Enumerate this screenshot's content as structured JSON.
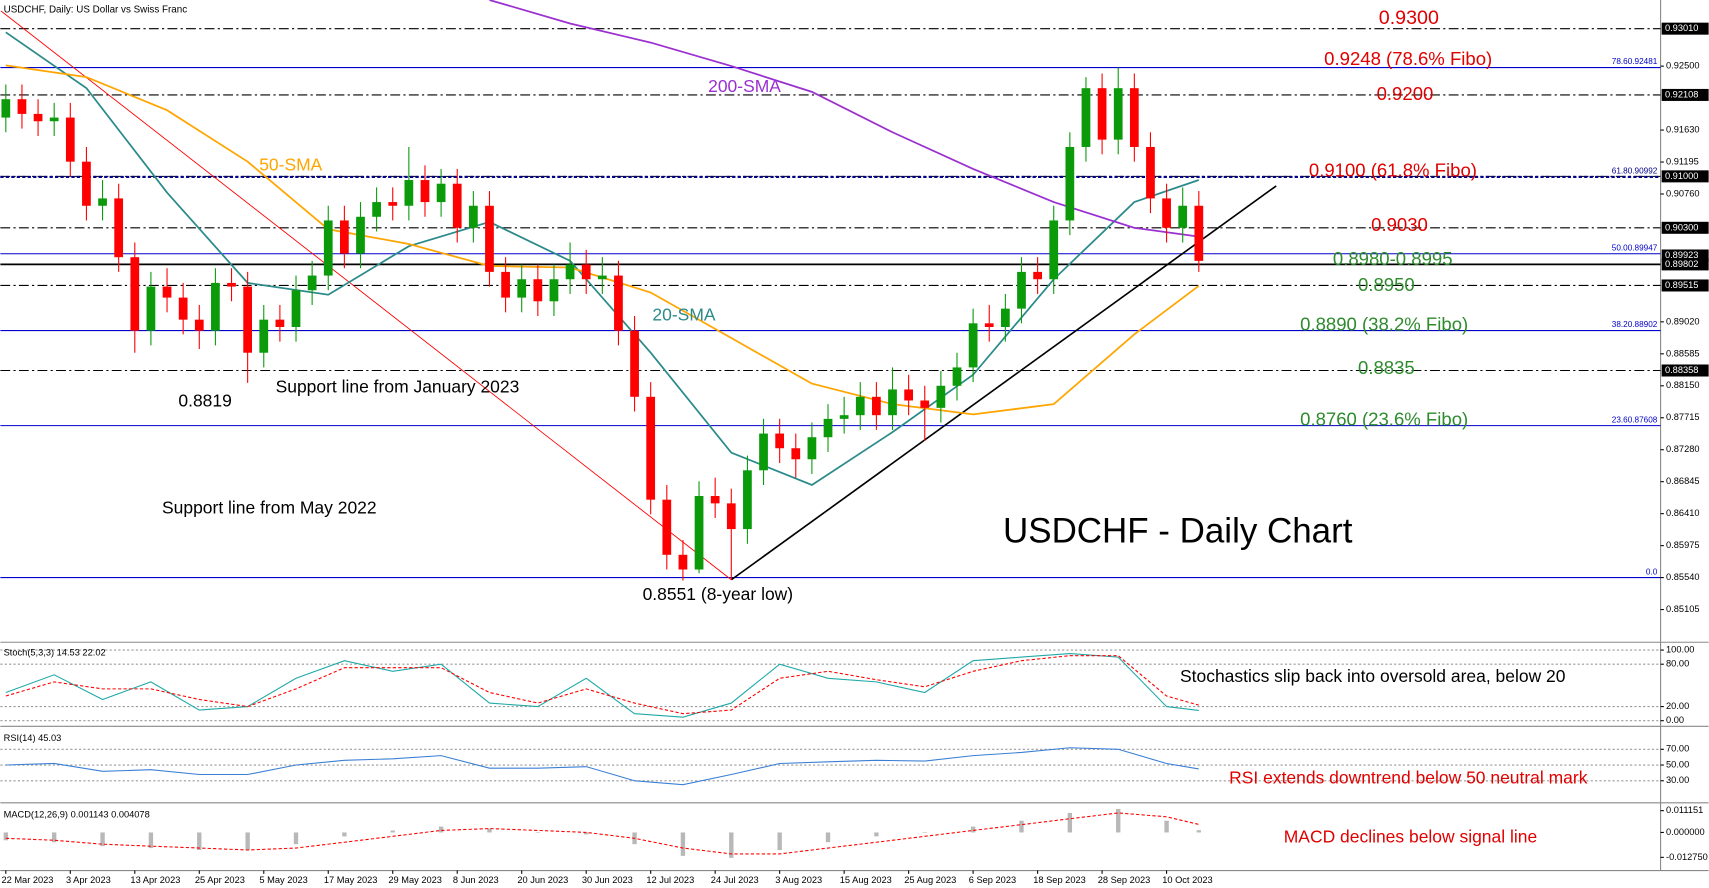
{
  "chart_data": [
    {
      "type": "candlestick",
      "title": "USDCHF, Daily:  US Dollar vs Swiss Franc",
      "categories": [
        "22 Mar 2023",
        null,
        null,
        null,
        "3 Apr 2023",
        null,
        null,
        null,
        "13 Apr 2023",
        null,
        null,
        null,
        "25 Apr 2023",
        null,
        null,
        null,
        "5 May 2023",
        null,
        null,
        null,
        "17 May 2023",
        null,
        null,
        null,
        "29 May 2023",
        null,
        null,
        null,
        "8 Jun 2023",
        null,
        null,
        null,
        "20 Jun 2023",
        null,
        null,
        null,
        "30 Jun 2023",
        null,
        null,
        null,
        "12 Jul 2023",
        null,
        null,
        null,
        "24 Jul 2023",
        null,
        null,
        null,
        "3 Aug 2023",
        null,
        null,
        null,
        "15 Aug 2023",
        null,
        null,
        null,
        "25 Aug 2023",
        null,
        null,
        null,
        "6 Sep 2023",
        null,
        null,
        null,
        "18 Sep 2023",
        null,
        null,
        null,
        "28 Sep 2023",
        null,
        null,
        null,
        "10 Oct 2023",
        null,
        null
      ],
      "open": [
        0.918,
        0.9205,
        0.9185,
        0.9175,
        0.918,
        0.912,
        0.906,
        0.907,
        0.899,
        0.889,
        0.895,
        0.8935,
        0.8905,
        0.889,
        0.8955,
        0.895,
        0.886,
        0.8905,
        0.8895,
        0.8945,
        0.8965,
        0.904,
        0.8995,
        0.9045,
        0.9065,
        0.906,
        0.9095,
        0.9065,
        0.909,
        0.903,
        0.906,
        0.897,
        0.8935,
        0.896,
        0.893,
        0.896,
        0.898,
        0.896,
        0.8965,
        0.889,
        0.88,
        0.866,
        0.8585,
        0.8565,
        0.8665,
        0.8655,
        0.862,
        0.87,
        0.875,
        0.873,
        0.8715,
        0.8745,
        0.877,
        0.8775,
        0.88,
        0.8775,
        0.881,
        0.8795,
        0.8785,
        0.8815,
        0.884,
        0.89,
        0.8895,
        0.892,
        0.897,
        0.896,
        0.904,
        0.914,
        0.922,
        0.915,
        0.922,
        0.914,
        0.907,
        0.903,
        0.906
      ],
      "high": [
        0.9225,
        0.9225,
        0.9205,
        0.92,
        0.92,
        0.914,
        0.9095,
        0.909,
        0.901,
        0.897,
        0.8975,
        0.8955,
        0.8925,
        0.8975,
        0.8975,
        0.897,
        0.8925,
        0.8925,
        0.8965,
        0.8985,
        0.906,
        0.906,
        0.9065,
        0.9085,
        0.9085,
        0.914,
        0.9115,
        0.911,
        0.911,
        0.908,
        0.908,
        0.899,
        0.898,
        0.898,
        0.898,
        0.901,
        0.9,
        0.899,
        0.8985,
        0.891,
        0.882,
        0.868,
        0.8605,
        0.8685,
        0.869,
        0.8675,
        0.872,
        0.877,
        0.877,
        0.875,
        0.8765,
        0.879,
        0.88,
        0.882,
        0.882,
        0.884,
        0.883,
        0.8815,
        0.8835,
        0.886,
        0.892,
        0.8925,
        0.894,
        0.899,
        0.899,
        0.906,
        0.916,
        0.9235,
        0.924,
        0.9248,
        0.924,
        0.916,
        0.909,
        0.9085,
        0.908
      ],
      "low": [
        0.916,
        0.9165,
        0.9155,
        0.9155,
        0.91,
        0.904,
        0.904,
        0.897,
        0.886,
        0.887,
        0.8915,
        0.8885,
        0.8865,
        0.887,
        0.893,
        0.8819,
        0.884,
        0.8875,
        0.8875,
        0.8925,
        0.8945,
        0.8975,
        0.8975,
        0.9025,
        0.904,
        0.904,
        0.9045,
        0.9045,
        0.901,
        0.901,
        0.895,
        0.8915,
        0.8915,
        0.891,
        0.891,
        0.894,
        0.894,
        0.894,
        0.887,
        0.878,
        0.864,
        0.8565,
        0.855,
        0.856,
        0.8635,
        0.8551,
        0.86,
        0.868,
        0.871,
        0.869,
        0.8695,
        0.8725,
        0.875,
        0.8755,
        0.8755,
        0.8755,
        0.8775,
        0.874,
        0.8765,
        0.8795,
        0.882,
        0.8875,
        0.8875,
        0.89,
        0.894,
        0.894,
        0.902,
        0.912,
        0.913,
        0.913,
        0.912,
        0.905,
        0.901,
        0.901,
        0.897
      ],
      "close": [
        0.9205,
        0.9185,
        0.9175,
        0.918,
        0.912,
        0.906,
        0.907,
        0.899,
        0.889,
        0.895,
        0.8935,
        0.8905,
        0.889,
        0.8955,
        0.895,
        0.886,
        0.8905,
        0.8895,
        0.8945,
        0.8965,
        0.904,
        0.8995,
        0.9045,
        0.9065,
        0.906,
        0.9095,
        0.9065,
        0.909,
        0.903,
        0.906,
        0.897,
        0.8935,
        0.896,
        0.893,
        0.896,
        0.898,
        0.896,
        0.8965,
        0.889,
        0.88,
        0.866,
        0.8585,
        0.8565,
        0.8665,
        0.8655,
        0.862,
        0.87,
        0.875,
        0.873,
        0.8715,
        0.8745,
        0.877,
        0.8775,
        0.88,
        0.8775,
        0.881,
        0.8795,
        0.8785,
        0.8815,
        0.884,
        0.89,
        0.8895,
        0.892,
        0.897,
        0.896,
        0.904,
        0.914,
        0.922,
        0.915,
        0.922,
        0.914,
        0.907,
        0.903,
        0.906,
        0.8985
      ],
      "up_color": "#0a9a0a",
      "down_color": "#ff0000",
      "ylim": [
        0.8466,
        0.934
      ],
      "yticks": [
        {
          "value": 0.925,
          "label": "0.92500"
        },
        {
          "value": 0.9163,
          "label": "0.91630"
        },
        0.91195,
        {
          "value": 0.9076,
          "label": "0.90760"
        },
        {
          "value": 0.8902,
          "label": "0.89020"
        },
        0.88585,
        {
          "value": 0.8815,
          "label": "0.88150"
        },
        0.87715,
        {
          "value": 0.8728,
          "label": "0.87280"
        },
        0.86845,
        {
          "value": 0.8641,
          "label": "0.86410"
        },
        0.85975,
        {
          "value": 0.8554,
          "label": "0.85540"
        },
        0.85105
      ],
      "levels": [
        {
          "value": 0.9301,
          "label": "0.93010",
          "style": "dashdot",
          "color": "#000000",
          "boxed": true
        },
        {
          "value": 0.92481,
          "label": "78.60.92481",
          "style": "solid",
          "color": "#0000cc",
          "boxed": false
        },
        {
          "value": 0.92108,
          "label": "0.92108",
          "style": "dashdot",
          "color": "#000000",
          "boxed": true
        },
        {
          "value": 0.91,
          "label": "0.91000",
          "style": "dashdot",
          "color": "#000000",
          "boxed": true
        },
        {
          "value": 0.90992,
          "label": "61.80.90992",
          "style": "dotted",
          "color": "#00008b",
          "boxed": false
        },
        {
          "value": 0.903,
          "label": "0.90300",
          "style": "dashdot",
          "color": "#000000",
          "boxed": true
        },
        {
          "value": 0.89947,
          "label": "50.00.89947",
          "style": "solid",
          "color": "#0000cc",
          "boxed": false
        },
        {
          "value": 0.89923,
          "label": "0.89923",
          "style": "none",
          "color": "#000000",
          "boxed": true
        },
        {
          "value": 0.89802,
          "label": "0.89802",
          "style": "bold",
          "color": "#000000",
          "boxed": true
        },
        {
          "value": 0.89515,
          "label": "0.89515",
          "style": "dashdot",
          "color": "#000000",
          "boxed": true
        },
        {
          "value": 0.88902,
          "label": "38.20.88902",
          "style": "solid",
          "color": "#0000cc",
          "boxed": false
        },
        {
          "value": 0.88358,
          "label": "0.88358",
          "style": "dashdot",
          "color": "#000000",
          "boxed": true
        },
        {
          "value": 0.87608,
          "label": "23.60.87608",
          "style": "solid",
          "color": "#0000cc",
          "boxed": false
        },
        {
          "value": 0.8554,
          "label": "0.0",
          "style": "solid",
          "color": "#0000cc",
          "boxed": false
        }
      ],
      "series": [
        {
          "color": "#2b8a8a",
          "x": [
            0,
            5,
            10,
            15,
            20,
            25,
            30,
            35,
            40,
            45,
            50,
            55,
            60,
            65,
            70,
            74
          ],
          "values": [
            0.9296,
            0.922,
            0.9078,
            0.8955,
            0.8939,
            0.9005,
            0.9038,
            0.8985,
            0.886,
            0.8724,
            0.868,
            0.8752,
            0.883,
            0.896,
            0.9065,
            0.9095
          ]
        },
        {
          "color": "#ffa500",
          "x": [
            0,
            5,
            10,
            15,
            20,
            25,
            30,
            35,
            40,
            45,
            50,
            55,
            60,
            65,
            70,
            74
          ],
          "values": [
            0.9251,
            0.9235,
            0.919,
            0.912,
            0.9028,
            0.9008,
            0.8978,
            0.8976,
            0.8942,
            0.888,
            0.8818,
            0.879,
            0.8776,
            0.879,
            0.8885,
            0.8951
          ]
        },
        {
          "color": "#9b30d0",
          "x": [
            30,
            35,
            40,
            45,
            50,
            55,
            60,
            65,
            70,
            74
          ],
          "values": [
            0.934,
            0.9308,
            0.9282,
            0.925,
            0.9215,
            0.916,
            0.911,
            0.9065,
            0.903,
            0.9018
          ]
        }
      ],
      "lines": [
        {
          "color": "#ff0000",
          "x": [
            -0.3,
            45
          ],
          "values": [
            0.9325,
            0.8551
          ]
        },
        {
          "color": "#000000",
          "x": [
            45,
            78.8
          ],
          "values": [
            0.8551,
            0.9087
          ]
        }
      ],
      "annotations": [
        {
          "text": "0.9300",
          "color": "#e00000"
        },
        {
          "text": "0.9248 (78.6% Fibo)",
          "color": "#e00000"
        },
        {
          "text": "0.9200",
          "color": "#e00000"
        },
        {
          "text": "0.9100 (61.8% Fibo)",
          "color": "#e00000"
        },
        {
          "text": "0.9030",
          "color": "#e00000"
        },
        {
          "text": "0.8980-0.8995",
          "color": "#2e8b2e"
        },
        {
          "text": "0.8950",
          "color": "#2e8b2e"
        },
        {
          "text": "0.8890 (38.2% Fibo)",
          "color": "#2e8b2e"
        },
        {
          "text": "0.8835",
          "color": "#2e8b2e"
        },
        {
          "text": "0.8760 (23.6% Fibo)",
          "color": "#2e8b2e"
        },
        {
          "text": "200-SMA",
          "color": "#9b30d0"
        },
        {
          "text": "50-SMA",
          "color": "#ffa500"
        },
        {
          "text": "20-SMA",
          "color": "#2b8a8a"
        },
        {
          "text": "0.8819",
          "color": "#000000"
        },
        {
          "text": "Support line from January 2023",
          "color": "#000000"
        },
        {
          "text": "Support line from May 2022",
          "color": "#000000"
        },
        {
          "text": "0.8551 (8-year low)",
          "color": "#000000"
        },
        {
          "text": "USDCHF - Daily Chart",
          "color": "#000000"
        }
      ]
    },
    {
      "type": "line",
      "title": "Stoch(5,3,3) 14.53 22.02",
      "annotation": {
        "text": "Stochastics slip back into oversold area, below 20",
        "color": "#000000"
      },
      "x": [
        0,
        3,
        6,
        9,
        12,
        15,
        18,
        21,
        24,
        27,
        30,
        33,
        36,
        39,
        42,
        45,
        48,
        51,
        54,
        57,
        60,
        63,
        66,
        69,
        72,
        74
      ],
      "series": [
        {
          "color": "#20a8a8",
          "dash": false,
          "values": [
            40,
            65,
            30,
            55,
            15,
            20,
            60,
            85,
            70,
            80,
            25,
            20,
            60,
            10,
            5,
            25,
            80,
            60,
            55,
            40,
            85,
            90,
            95,
            90,
            20,
            14.53
          ]
        },
        {
          "color": "#ff0000",
          "dash": true,
          "values": [
            35,
            55,
            45,
            45,
            30,
            20,
            45,
            75,
            75,
            75,
            40,
            25,
            45,
            25,
            10,
            15,
            60,
            70,
            58,
            48,
            70,
            85,
            92,
            92,
            35,
            22.02
          ]
        }
      ],
      "ylim": [
        -8,
        108
      ],
      "yticks": [
        {
          "value": 100,
          "label": "100.00"
        },
        {
          "value": 80,
          "label": "80.00"
        },
        {
          "value": 20,
          "label": "20.00"
        },
        {
          "value": 0,
          "label": "0.00"
        }
      ],
      "grid": true
    },
    {
      "type": "line",
      "title": "RSI(14) 45.03",
      "annotation": {
        "text": "RSI extends downtrend below 50 neutral mark",
        "color": "#e00000"
      },
      "x": [
        0,
        3,
        6,
        9,
        12,
        15,
        18,
        21,
        24,
        27,
        30,
        33,
        36,
        39,
        42,
        45,
        48,
        51,
        54,
        57,
        60,
        63,
        66,
        69,
        72,
        74
      ],
      "series": [
        {
          "color": "#3a7fd5",
          "dash": false,
          "values": [
            50,
            52,
            42,
            44,
            38,
            38,
            50,
            56,
            58,
            62,
            46,
            46,
            48,
            30,
            25,
            38,
            52,
            54,
            56,
            55,
            62,
            66,
            72,
            70,
            52,
            45.03
          ]
        }
      ],
      "ylim": [
        2,
        95
      ],
      "yticks": [
        {
          "value": 70,
          "label": "70.00"
        },
        {
          "value": 50,
          "label": "50.00"
        },
        {
          "value": 30,
          "label": "30.00"
        }
      ],
      "grid": true
    },
    {
      "type": "bar",
      "title": "MACD(12,26,9) 0.001143 0.004078",
      "annotation": {
        "text": "MACD declines below signal line",
        "color": "#e00000"
      },
      "x": [
        0,
        3,
        6,
        9,
        12,
        15,
        18,
        21,
        24,
        27,
        30,
        33,
        36,
        39,
        42,
        45,
        48,
        51,
        54,
        57,
        60,
        63,
        66,
        69,
        72,
        74
      ],
      "series": [
        {
          "type": "bar",
          "color": "#b8b8b8",
          "values": [
            -0.004,
            -0.005,
            -0.007,
            -0.008,
            -0.009,
            -0.009,
            -0.006,
            -0.002,
            0.001,
            0.003,
            0.002,
            0.0,
            -0.001,
            -0.006,
            -0.012,
            -0.013,
            -0.009,
            -0.005,
            -0.002,
            0.0,
            0.003,
            0.006,
            0.01,
            0.012,
            0.006,
            0.001143
          ]
        },
        {
          "type": "line",
          "color": "#ff0000",
          "dash": true,
          "values": [
            -0.003,
            -0.004,
            -0.006,
            -0.007,
            -0.008,
            -0.009,
            -0.008,
            -0.005,
            -0.002,
            0.001,
            0.002,
            0.001,
            0.0,
            -0.003,
            -0.008,
            -0.011,
            -0.011,
            -0.008,
            -0.005,
            -0.002,
            0.001,
            0.004,
            0.007,
            0.01,
            0.008,
            0.004078
          ]
        }
      ],
      "ylim": [
        -0.0195,
        0.0135
      ],
      "yticks": [
        0.011151,
        {
          "value": 0,
          "label": "0.000000"
        },
        {
          "value": -0.01275,
          "label": "-0.012750"
        }
      ],
      "grid": false
    }
  ]
}
